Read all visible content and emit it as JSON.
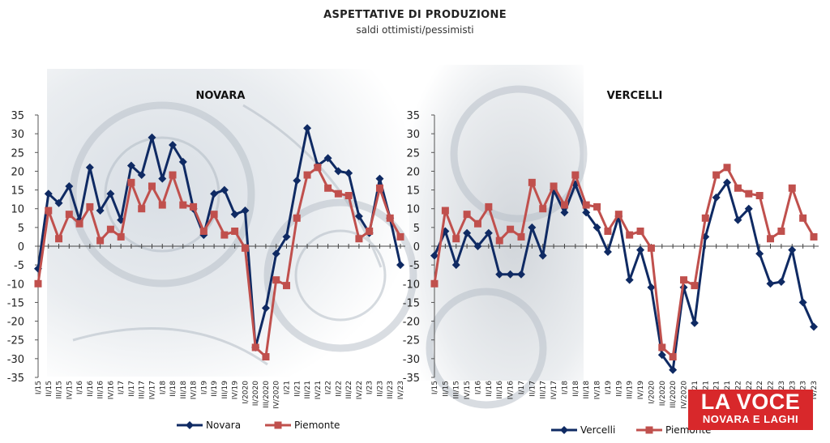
{
  "header": {
    "title": "ASPETTATIVE DI PRODUZIONE",
    "subtitle": "saldi ottimisti/pessimisti"
  },
  "logo": {
    "line1": "LA VOCE",
    "line2": "NOVARA E LAGHI"
  },
  "colors": {
    "navy": "#0f2a63",
    "red": "#c0504d",
    "logo_bg": "#d8282b"
  },
  "chart_data": [
    {
      "type": "line",
      "title": "NOVARA",
      "ylim": [
        -35,
        35
      ],
      "yticks": [
        35,
        30,
        25,
        20,
        15,
        10,
        5,
        0,
        -5,
        -10,
        -15,
        -20,
        -25,
        -30,
        -35
      ],
      "legend_position": "bottom",
      "categories": [
        "I/15",
        "II/15",
        "III/15",
        "IV/15",
        "I/16",
        "II/16",
        "III/16",
        "IV/16",
        "I/17",
        "II/17",
        "III/17",
        "IV/17",
        "I/18",
        "II/18",
        "III/18",
        "IV/18",
        "I/19",
        "II/19",
        "III/19",
        "IV/19",
        "I/2020",
        "II/2020",
        "III/2020",
        "IV/2020",
        "I/21",
        "II/21",
        "III/21",
        "IV/21",
        "I/22",
        "II/22",
        "III/22",
        "IV/22",
        "I/23",
        "II/23",
        "III/23",
        "IV/23"
      ],
      "series": [
        {
          "name": "Novara",
          "color": "#0f2a63",
          "marker": "diamond",
          "values": [
            -6,
            14,
            11.5,
            16,
            7,
            21,
            9.5,
            14,
            7,
            21.5,
            19,
            29,
            18,
            27,
            22.5,
            10,
            3,
            14,
            15,
            8.5,
            9.5,
            -27,
            -16.5,
            -2,
            2.5,
            17.5,
            31.5,
            21.5,
            23.5,
            20,
            19.5,
            8,
            3.5,
            18,
            7.5,
            -5
          ]
        },
        {
          "name": "Piemonte",
          "color": "#c0504d",
          "marker": "square",
          "values": [
            -10,
            9.5,
            2,
            8.5,
            6,
            10.5,
            1.5,
            4.5,
            2.5,
            17,
            10,
            16,
            11,
            19,
            11,
            10.5,
            4,
            8.5,
            3,
            4,
            -0.5,
            -27,
            -29.5,
            -9,
            -10.5,
            7.5,
            19,
            21,
            15.5,
            14,
            13.5,
            2,
            4,
            15.5,
            7.5,
            2.5
          ]
        }
      ]
    },
    {
      "type": "line",
      "title": "VERCELLI",
      "ylim": [
        -35,
        35
      ],
      "yticks": [
        35,
        30,
        25,
        20,
        15,
        10,
        5,
        0,
        -5,
        -10,
        -15,
        -20,
        -25,
        -30,
        -35
      ],
      "legend_position": "bottom",
      "categories": [
        "I/15",
        "II/15",
        "III/15",
        "IV/15",
        "I/16",
        "II/16",
        "III/16",
        "IV/16",
        "I/17",
        "II/17",
        "III/17",
        "IV/17",
        "I/18",
        "II/18",
        "III/18",
        "IV/18",
        "I/19",
        "II/19",
        "III/19",
        "IV/19",
        "I/2020",
        "II/2020",
        "III/2020",
        "IV/2020",
        "I/21",
        "II/21",
        "III/21",
        "IV/21",
        "I/22",
        "II/22",
        "III/22",
        "IV/22",
        "I/23",
        "II/23",
        "III/23",
        "IV/23"
      ],
      "series": [
        {
          "name": "Vercelli",
          "color": "#0f2a63",
          "marker": "diamond",
          "values": [
            -2.5,
            4,
            -5,
            3.5,
            0,
            3.5,
            -7.5,
            -7.5,
            -7.5,
            5,
            -2.5,
            15,
            9,
            16.5,
            9,
            5,
            -1.5,
            8,
            -9,
            -1,
            -11,
            -29,
            -33,
            -11,
            -20.5,
            2.5,
            13,
            17,
            7,
            10,
            -2,
            -10,
            -9.5,
            -1,
            -15,
            -21.5
          ]
        },
        {
          "name": "Piemonte",
          "color": "#c0504d",
          "marker": "square",
          "values": [
            -10,
            9.5,
            2,
            8.5,
            6,
            10.5,
            1.5,
            4.5,
            2.5,
            17,
            10,
            16,
            11,
            19,
            11,
            10.5,
            4,
            8.5,
            3,
            4,
            -0.5,
            -27,
            -29.5,
            -9,
            -10.5,
            7.5,
            19,
            21,
            15.5,
            14,
            13.5,
            2,
            4,
            15.5,
            7.5,
            2.5
          ]
        }
      ]
    }
  ]
}
